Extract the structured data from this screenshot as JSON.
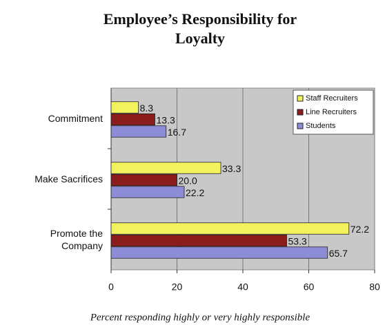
{
  "chart_data": {
    "type": "hbar",
    "title": "Employee’s Responsibility for Loyalty",
    "x_label": "Percent responding highly or very highly responsible",
    "categories": [
      "Commitment",
      "Make Sacrifices",
      "Promote the Company"
    ],
    "series": [
      {
        "name": "Staff Recruiters",
        "color": "#f2f25e",
        "values": [
          8.3,
          33.3,
          72.2
        ],
        "value_labels": [
          "8.3",
          "33.3",
          "72.2"
        ]
      },
      {
        "name": "Line Recruiters",
        "color": "#8a1c1c",
        "values": [
          13.3,
          20.0,
          53.3
        ],
        "value_labels": [
          "13.3",
          "20.0",
          "53.3"
        ]
      },
      {
        "name": "Students",
        "color": "#8c8cd6",
        "values": [
          16.7,
          22.2,
          65.7
        ],
        "value_labels": [
          "16.7",
          "22.2",
          "65.7"
        ]
      }
    ],
    "xlim": [
      0,
      80
    ],
    "xticks": [
      0,
      20,
      40,
      60,
      80
    ],
    "grid": true,
    "legend": "upper right"
  }
}
